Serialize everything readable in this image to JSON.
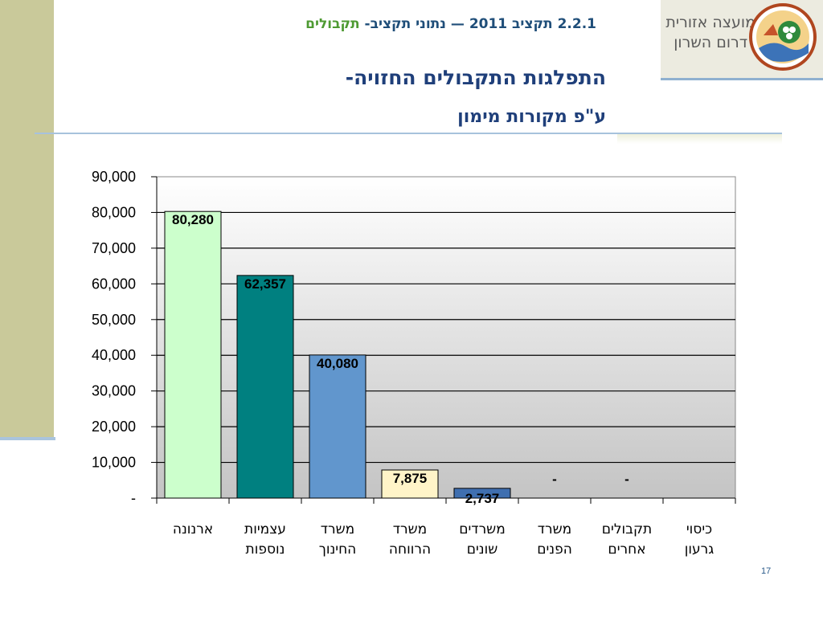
{
  "header": {
    "subtitle_prefix": "2.2.1 תקציב 2011 — נתוני תקציב-",
    "subtitle_highlight": "תקבולים",
    "title_line1": "התפלגות התקבולים החזויה-",
    "title_line2": "ע\"פ מקורות מימון"
  },
  "logo": {
    "line1": "מועצה אזורית",
    "line2": "דרום השרון",
    "emblem_icon": "regional-council-emblem"
  },
  "page_number": "17",
  "colors": {
    "band": "#c9c99a",
    "title": "#1f3f7a",
    "subtitle": "#1f4e79",
    "highlight": "#4e9a32"
  },
  "chart_data": {
    "type": "bar",
    "title": "",
    "xlabel": "",
    "ylabel": "",
    "ylim": [
      0,
      90000
    ],
    "y_ticks": [
      0,
      10000,
      20000,
      30000,
      40000,
      50000,
      60000,
      70000,
      80000,
      90000
    ],
    "y_tick_labels": [
      "-",
      "10,000",
      "20,000",
      "30,000",
      "40,000",
      "50,000",
      "60,000",
      "70,000",
      "80,000",
      "90,000"
    ],
    "grid": true,
    "categories": [
      [
        "ארנונה"
      ],
      [
        "עצמיות",
        "נוספות"
      ],
      [
        "משרד",
        "החינוך"
      ],
      [
        "משרד",
        "הרווחה"
      ],
      [
        "משרדים",
        "שונים"
      ],
      [
        "משרד",
        "הפנים"
      ],
      [
        "תקבולים",
        "אחרים"
      ],
      [
        "כיסוי",
        "גרעון"
      ]
    ],
    "values": [
      80280,
      62357,
      40080,
      7875,
      2737,
      0,
      0,
      0
    ],
    "data_labels": [
      "80,280",
      "62,357",
      "40,080",
      "7,875",
      "2,737",
      "-",
      "-",
      ""
    ],
    "bar_colors": [
      "#ccffcc",
      "#008080",
      "#6196cd",
      "#fff4c8",
      "#3f6fb0",
      "#cccccc",
      "#cccccc",
      "#cccccc"
    ]
  }
}
